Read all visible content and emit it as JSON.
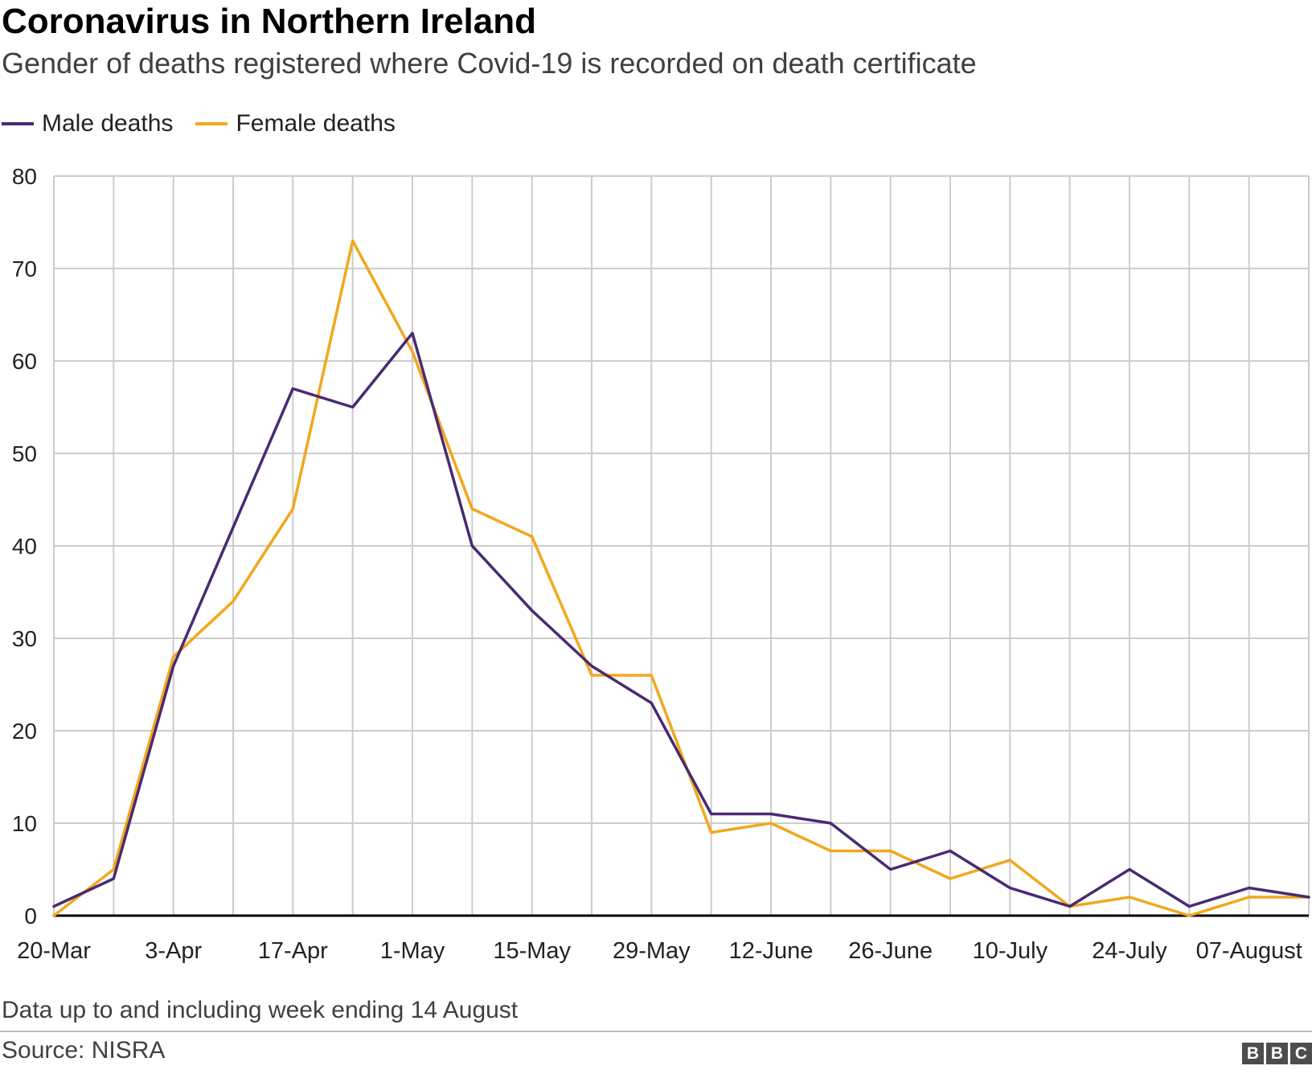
{
  "title": "Coronavirus in Northern Ireland",
  "subtitle": "Gender of deaths registered where Covid-19 is recorded on death certificate",
  "footnote": "Data up to and including week ending 14 August",
  "source": "Source: NISRA",
  "logo": [
    "B",
    "B",
    "C"
  ],
  "colors": {
    "male": "#4a2a72",
    "female": "#f2a71b",
    "grid": "#cccccc",
    "baseline": "#000000",
    "text": "#222222"
  },
  "chart_data": {
    "type": "line",
    "title": "Coronavirus in Northern Ireland",
    "subtitle": "Gender of deaths registered where Covid-19 is recorded on death certificate",
    "xlabel": "",
    "ylabel": "",
    "ylim": [
      0,
      80
    ],
    "yticks": [
      0,
      10,
      20,
      30,
      40,
      50,
      60,
      70,
      80
    ],
    "grid": true,
    "legend_position": "top-left",
    "x": [
      "20-Mar",
      "27-Mar",
      "3-Apr",
      "10-Apr",
      "17-Apr",
      "24-Apr",
      "1-May",
      "8-May",
      "15-May",
      "22-May",
      "29-May",
      "5-June",
      "12-June",
      "19-June",
      "26-June",
      "3-July",
      "10-July",
      "17-July",
      "24-July",
      "31-July",
      "07-August",
      "14-August"
    ],
    "xtick_labels": [
      "20-Mar",
      "3-Apr",
      "17-Apr",
      "1-May",
      "15-May",
      "29-May",
      "12-June",
      "26-June",
      "10-July",
      "24-July",
      "07-August"
    ],
    "series": [
      {
        "name": "Male deaths",
        "color": "#4a2a72",
        "values": [
          1,
          4,
          27,
          42,
          57,
          55,
          63,
          40,
          33,
          27,
          23,
          11,
          11,
          10,
          5,
          7,
          3,
          1,
          5,
          1,
          3,
          2
        ]
      },
      {
        "name": "Female deaths",
        "color": "#f2a71b",
        "values": [
          0,
          5,
          28,
          34,
          44,
          73,
          61,
          44,
          41,
          26,
          26,
          9,
          10,
          7,
          7,
          4,
          6,
          1,
          2,
          0,
          2,
          2
        ]
      }
    ]
  }
}
